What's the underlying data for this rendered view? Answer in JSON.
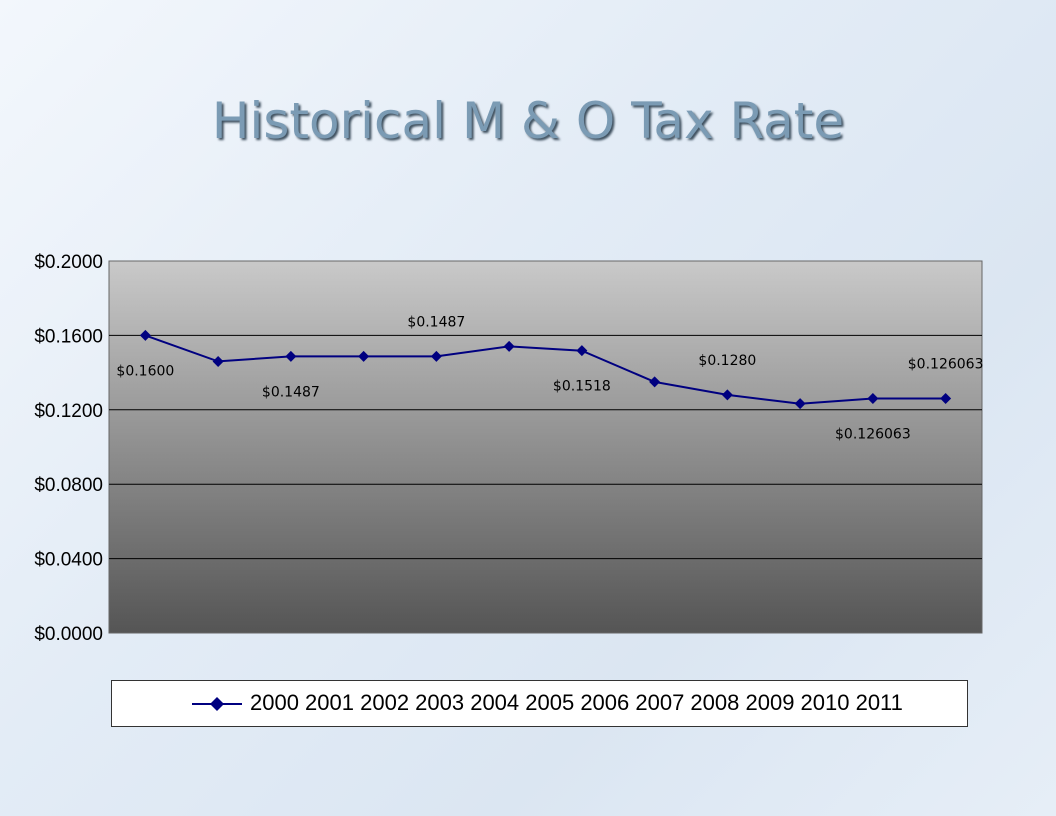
{
  "title": "Historical M & O Tax Rate",
  "chart_data": {
    "type": "line",
    "title": "",
    "xlabel": "",
    "ylabel": "",
    "ylim": [
      0,
      0.2
    ],
    "yticks": [
      "$0.2000",
      "$0.1600",
      "$0.1200",
      "$0.0800",
      "$0.0400",
      "$0.0000"
    ],
    "grid": true,
    "x": [
      "2000",
      "2001",
      "2002",
      "2003",
      "2004",
      "2005",
      "2006",
      "2007",
      "2008",
      "2009",
      "2010",
      "2011"
    ],
    "series": [
      {
        "name": "2000 2001 2002 2003 2004 2005 2006 2007 2008 2009 2010 2011",
        "values": [
          0.16,
          0.146,
          0.1487,
          0.1487,
          0.1487,
          0.1541,
          0.1518,
          0.135,
          0.128,
          0.1233,
          0.126063,
          0.126063
        ],
        "color": "#000080"
      }
    ],
    "data_labels": [
      {
        "index": 0,
        "text": "$0.1600",
        "position": "below"
      },
      {
        "index": 2,
        "text": "$0.1487",
        "position": "below"
      },
      {
        "index": 4,
        "text": "$0.1487",
        "position": "above"
      },
      {
        "index": 6,
        "text": "$0.1518",
        "position": "below"
      },
      {
        "index": 8,
        "text": "$0.1280",
        "position": "above"
      },
      {
        "index": 10,
        "text": "$0.126063",
        "position": "below"
      },
      {
        "index": 11,
        "text": "$0.126063",
        "position": "above"
      }
    ],
    "legend_position": "bottom"
  }
}
